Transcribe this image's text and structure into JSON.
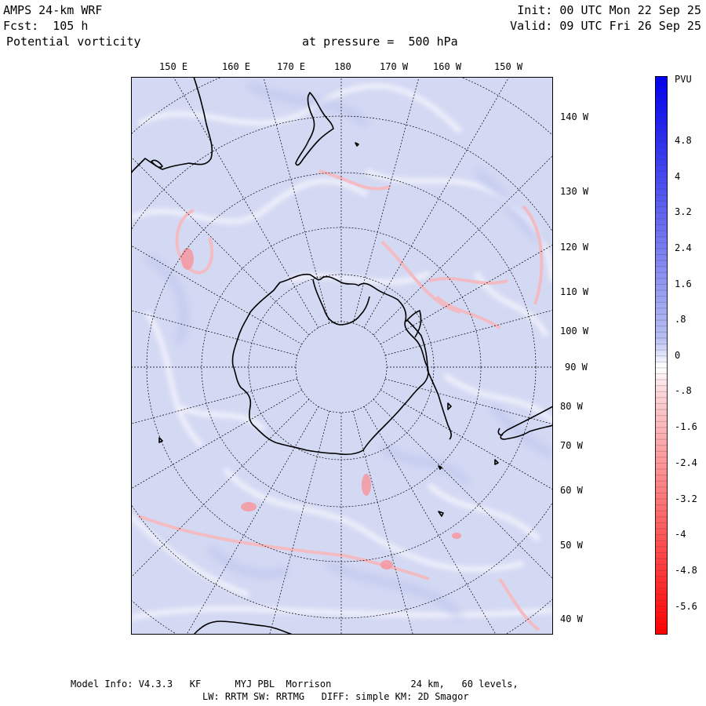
{
  "header": {
    "model": "AMPS 24-km WRF",
    "forecast": "Fcst:  105 h",
    "field": "Potential vorticity",
    "level": "at pressure =  500 hPa",
    "init": "Init: 00 UTC Mon 22 Sep 25",
    "valid": "Valid: 09 UTC Fri 26 Sep 25"
  },
  "map": {
    "top_labels": [
      "150 E",
      "160 E",
      "170 E",
      "180",
      "170 W",
      "160 W",
      "150 W"
    ],
    "right_labels": [
      "140 W",
      "130 W",
      "120 W",
      "110 W",
      "100 W",
      "90 W",
      "80 W",
      "70 W",
      "60 W",
      "50 W",
      "40 W"
    ]
  },
  "colorbar": {
    "unit": "PVU",
    "labels": [
      "4.8",
      "4",
      "3.2",
      "2.4",
      "1.6",
      ".8",
      "0",
      "-.8",
      "-1.6",
      "-2.4",
      "-3.2",
      "-4",
      "-4.8",
      "-5.6"
    ],
    "colors": {
      "positive": "#0000ee",
      "negative": "#ff0000",
      "neutral": "#ffffff",
      "background": "#d6daf4"
    }
  },
  "footer": {
    "line1": "Model Info: V4.3.3   KF      MYJ PBL  Morrison              24 km,   60 levels,",
    "line2": "LW: RRTM SW: RRTMG   DIFF: simple KM: 2D Smagor"
  }
}
